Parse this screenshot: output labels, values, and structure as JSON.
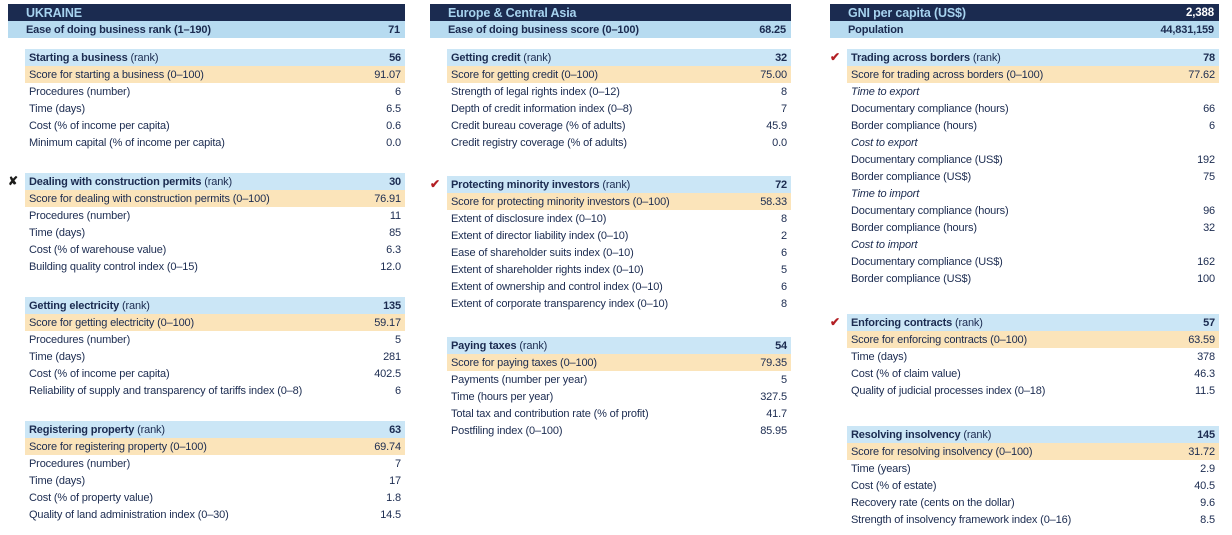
{
  "accent_colors": {
    "navy": "#1b2b50",
    "summary_row_blue": "#b7dbf0",
    "section_header_blue": "#cbe6f6",
    "score_row_peach": "#fbe4ba",
    "check_red": "#b31f24",
    "cross_black": "#1d1d1b"
  },
  "markers": {
    "check_glyph": "✔",
    "cross_glyph": "✘"
  },
  "columns": [
    {
      "header": {
        "bar_label": "UKRAINE",
        "bar_value": "",
        "sub_label": "Ease of doing business rank (1–190)",
        "sub_value": "71"
      },
      "sections": [
        {
          "marker": null,
          "title": "Starting a business",
          "suffix": "(rank)",
          "rank": "56",
          "rows": [
            {
              "type": "score",
              "label": "Score for starting a business (0–100)",
              "value": "91.07"
            },
            {
              "type": "item",
              "label": "Procedures (number)",
              "value": "6"
            },
            {
              "type": "item",
              "label": "Time (days)",
              "value": "6.5"
            },
            {
              "type": "item",
              "label": "Cost (% of income per capita)",
              "value": "0.6"
            },
            {
              "type": "item",
              "label": "Minimum capital (% of income per capita)",
              "value": "0.0"
            }
          ]
        },
        {
          "marker": "cross",
          "title": "Dealing with construction permits",
          "suffix": "(rank)",
          "rank": "30",
          "rows": [
            {
              "type": "score",
              "label": "Score for dealing with construction permits (0–100)",
              "value": "76.91"
            },
            {
              "type": "item",
              "label": "Procedures (number)",
              "value": "11"
            },
            {
              "type": "item",
              "label": "Time (days)",
              "value": "85"
            },
            {
              "type": "item",
              "label": "Cost (% of warehouse value)",
              "value": "6.3"
            },
            {
              "type": "item",
              "label": "Building quality control index (0–15)",
              "value": "12.0"
            }
          ]
        },
        {
          "marker": null,
          "title": "Getting electricity",
          "suffix": "(rank)",
          "rank": "135",
          "rows": [
            {
              "type": "score",
              "label": "Score for getting electricity (0–100)",
              "value": "59.17"
            },
            {
              "type": "item",
              "label": "Procedures (number)",
              "value": "5"
            },
            {
              "type": "item",
              "label": "Time (days)",
              "value": "281"
            },
            {
              "type": "item",
              "label": "Cost (% of income per capita)",
              "value": "402.5"
            },
            {
              "type": "item",
              "label": "Reliability of supply and transparency of tariffs index (0–8)",
              "value": "6"
            }
          ]
        },
        {
          "marker": null,
          "title": "Registering property",
          "suffix": "(rank)",
          "rank": "63",
          "rows": [
            {
              "type": "score",
              "label": "Score for registering property (0–100)",
              "value": "69.74"
            },
            {
              "type": "item",
              "label": "Procedures (number)",
              "value": "7"
            },
            {
              "type": "item",
              "label": "Time (days)",
              "value": "17"
            },
            {
              "type": "item",
              "label": "Cost (% of property value)",
              "value": "1.8"
            },
            {
              "type": "item",
              "label": "Quality of land administration index (0–30)",
              "value": "14.5"
            }
          ]
        }
      ]
    },
    {
      "header": {
        "bar_label": "Europe & Central Asia",
        "bar_value": "",
        "sub_label": "Ease of doing business score (0–100)",
        "sub_value": "68.25"
      },
      "sections": [
        {
          "marker": null,
          "title": "Getting credit",
          "suffix": "(rank)",
          "rank": "32",
          "rows": [
            {
              "type": "score",
              "label": "Score for getting credit (0–100)",
              "value": "75.00"
            },
            {
              "type": "item",
              "label": "Strength of legal rights index (0–12)",
              "value": "8"
            },
            {
              "type": "item",
              "label": "Depth of credit information index (0–8)",
              "value": "7"
            },
            {
              "type": "item",
              "label": "Credit bureau coverage (% of adults)",
              "value": "45.9"
            },
            {
              "type": "item",
              "label": "Credit registry coverage (% of adults)",
              "value": "0.0"
            }
          ]
        },
        {
          "marker": "check",
          "title": "Protecting minority investors",
          "suffix": "(rank)",
          "rank": "72",
          "rows": [
            {
              "type": "score",
              "label": "Score for protecting minority investors (0–100)",
              "value": "58.33"
            },
            {
              "type": "item",
              "label": "Extent of disclosure index (0–10)",
              "value": "8"
            },
            {
              "type": "item",
              "label": "Extent of director liability index (0–10)",
              "value": "2"
            },
            {
              "type": "item",
              "label": "Ease of shareholder suits index (0–10)",
              "value": "6"
            },
            {
              "type": "item",
              "label": "Extent of shareholder rights index (0–10)",
              "value": "5"
            },
            {
              "type": "item",
              "label": "Extent of ownership and control index (0–10)",
              "value": "6"
            },
            {
              "type": "item",
              "label": "Extent of corporate transparency index (0–10)",
              "value": "8"
            }
          ]
        },
        {
          "marker": null,
          "title": "Paying taxes",
          "suffix": "(rank)",
          "rank": "54",
          "rows": [
            {
              "type": "score",
              "label": "Score for paying taxes (0–100)",
              "value": "79.35"
            },
            {
              "type": "item",
              "label": "Payments (number per year)",
              "value": "5"
            },
            {
              "type": "item",
              "label": "Time (hours per year)",
              "value": "327.5"
            },
            {
              "type": "item",
              "label": "Total tax and contribution rate (% of profit)",
              "value": "41.7"
            },
            {
              "type": "item",
              "label": "Postfiling index (0–100)",
              "value": "85.95"
            }
          ]
        }
      ]
    },
    {
      "header": {
        "bar_label": "GNI per capita (US$)",
        "bar_value": "2,388",
        "sub_label": "Population",
        "sub_value": "44,831,159"
      },
      "sections": [
        {
          "marker": "check",
          "title": "Trading across borders",
          "suffix": "(rank)",
          "rank": "78",
          "rows": [
            {
              "type": "score",
              "label": "Score for trading across borders (0–100)",
              "value": "77.62"
            },
            {
              "type": "group",
              "label": "Time to export",
              "value": ""
            },
            {
              "type": "item",
              "label": "Documentary compliance (hours)",
              "value": "66"
            },
            {
              "type": "item",
              "label": "Border compliance (hours)",
              "value": "6"
            },
            {
              "type": "group",
              "label": "Cost to export",
              "value": ""
            },
            {
              "type": "item",
              "label": "Documentary compliance (US$)",
              "value": "192"
            },
            {
              "type": "item",
              "label": "Border compliance (US$)",
              "value": "75"
            },
            {
              "type": "group",
              "label": "Time to import",
              "value": ""
            },
            {
              "type": "item",
              "label": "Documentary compliance (hours)",
              "value": "96"
            },
            {
              "type": "item",
              "label": "Border compliance (hours)",
              "value": "32"
            },
            {
              "type": "group",
              "label": "Cost to import",
              "value": ""
            },
            {
              "type": "item",
              "label": "Documentary compliance (US$)",
              "value": "162"
            },
            {
              "type": "item",
              "label": "Border compliance (US$)",
              "value": "100"
            }
          ]
        },
        {
          "marker": "check",
          "title": "Enforcing contracts",
          "suffix": "(rank)",
          "rank": "57",
          "rows": [
            {
              "type": "score",
              "label": "Score for enforcing contracts (0–100)",
              "value": "63.59"
            },
            {
              "type": "item",
              "label": "Time (days)",
              "value": "378"
            },
            {
              "type": "item",
              "label": "Cost (% of claim value)",
              "value": "46.3"
            },
            {
              "type": "item",
              "label": "Quality of judicial processes index (0–18)",
              "value": "11.5"
            }
          ]
        },
        {
          "marker": null,
          "title": "Resolving insolvency",
          "suffix": "(rank)",
          "rank": "145",
          "rows": [
            {
              "type": "score",
              "label": "Score for resolving insolvency (0–100)",
              "value": "31.72"
            },
            {
              "type": "item",
              "label": "Time (years)",
              "value": "2.9"
            },
            {
              "type": "item",
              "label": "Cost (% of estate)",
              "value": "40.5"
            },
            {
              "type": "item",
              "label": "Recovery rate (cents on the dollar)",
              "value": "9.6"
            },
            {
              "type": "item",
              "label": "Strength of insolvency framework index (0–16)",
              "value": "8.5"
            }
          ]
        }
      ]
    }
  ]
}
